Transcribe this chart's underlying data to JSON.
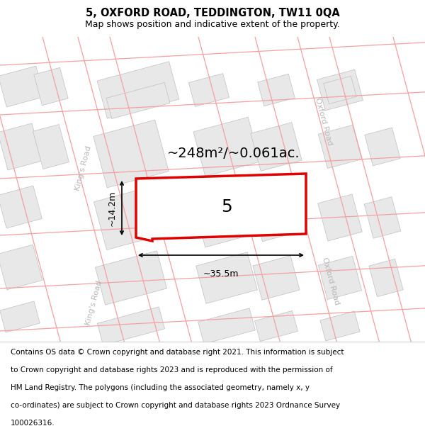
{
  "title": "5, OXFORD ROAD, TEDDINGTON, TW11 0QA",
  "subtitle": "Map shows position and indicative extent of the property.",
  "footer_lines": [
    "Contains OS data © Crown copyright and database right 2021. This information is subject",
    "to Crown copyright and database rights 2023 and is reproduced with the permission of",
    "HM Land Registry. The polygons (including the associated geometry, namely x, y",
    "co-ordinates) are subject to Crown copyright and database rights 2023 Ordnance Survey",
    "100026316."
  ],
  "map_bg": "#f7f7f7",
  "block_fc": "#e8e8e8",
  "block_ec": "#c0c0c0",
  "road_color": "#f4a0a0",
  "prop_ec": "#e00000",
  "prop_fc": "#ffffff",
  "road_label_color": "#b8b8b8",
  "area_label": "~248m²/~0.061ac.",
  "number_label": "5",
  "width_label": "~35.5m",
  "height_label": "~14.2m",
  "kings_road": "King's Road",
  "oxford_road": "Oxford Road",
  "title_fontsize": 10.5,
  "subtitle_fontsize": 9,
  "area_fontsize": 14,
  "number_fontsize": 18,
  "dim_fontsize": 9,
  "road_label_fontsize": 8,
  "footer_fontsize": 7.5,
  "map_tilt_deg": 15
}
